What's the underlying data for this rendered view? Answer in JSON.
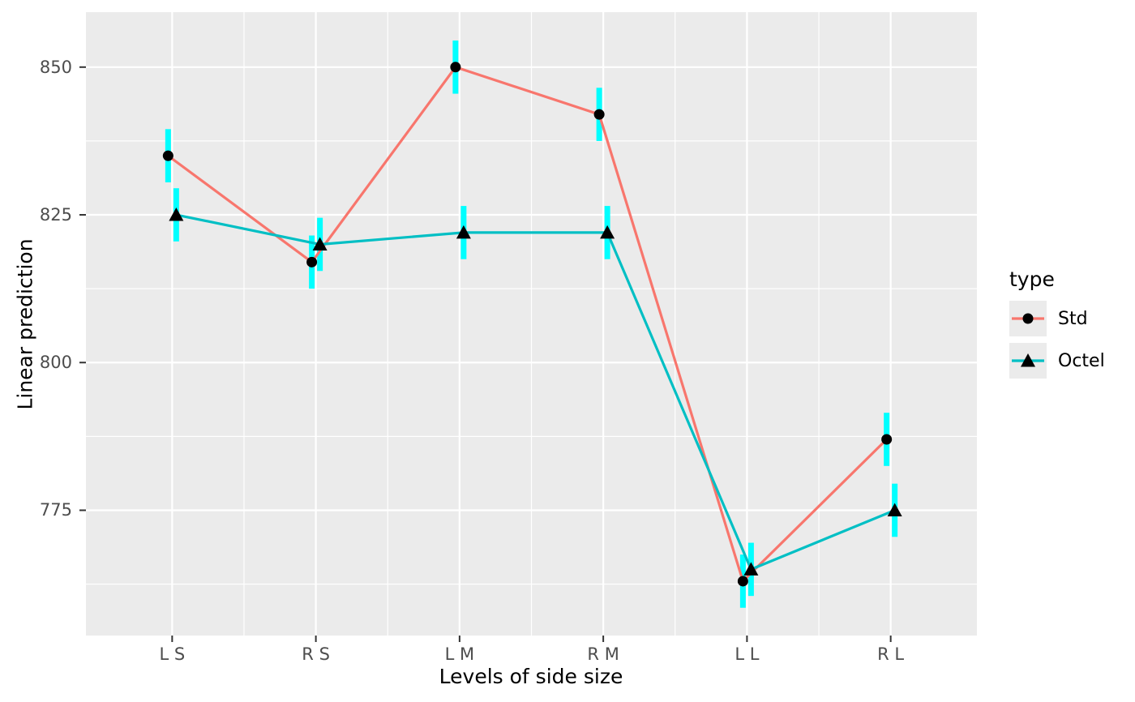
{
  "chart_data": {
    "type": "line",
    "title": "",
    "xlabel": "Levels of side size",
    "ylabel": "Linear prediction",
    "categories": [
      "L S",
      "R S",
      "L M",
      "R M",
      "L L",
      "R L"
    ],
    "series": [
      {
        "name": "Std",
        "color": "#F8766D",
        "marker": "circle",
        "values": [
          835,
          817,
          850,
          842,
          763,
          787
        ],
        "ci_lower": [
          830.5,
          812.5,
          845.5,
          837.5,
          758.5,
          782.5
        ],
        "ci_upper": [
          839.5,
          821.5,
          854.5,
          846.5,
          767.5,
          791.5
        ]
      },
      {
        "name": "Octel",
        "color": "#00BFC4",
        "marker": "triangle",
        "values": [
          825,
          820,
          822,
          822,
          765,
          775
        ],
        "ci_lower": [
          820.5,
          815.5,
          817.5,
          817.5,
          760.5,
          770.5
        ],
        "ci_upper": [
          829.5,
          824.5,
          826.5,
          826.5,
          769.5,
          779.5
        ]
      }
    ],
    "error_bar_color": "#00FFFF",
    "marker_color": "#000000",
    "yticks": [
      775,
      800,
      825,
      850
    ],
    "ytick_labels": [
      "775",
      "800",
      "825",
      "850"
    ],
    "ylim": [
      753.8,
      859.3
    ],
    "grid": {
      "show": true,
      "major_color": "#FFFFFF",
      "minor_color": "#FFFFFF"
    },
    "panel_background": "#EBEBEB",
    "tick_mark_color": "#333333",
    "legend": {
      "title": "type",
      "position": "right"
    }
  }
}
